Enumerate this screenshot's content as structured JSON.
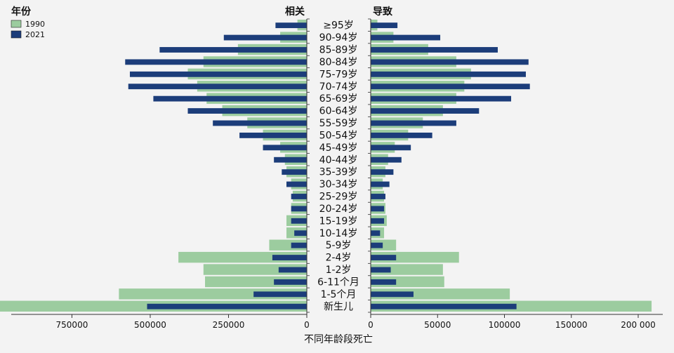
{
  "chart_data": {
    "type": "bar",
    "legend": {
      "title": "年份",
      "position": "top-left",
      "entries": [
        "1990",
        "2021"
      ]
    },
    "left_title": "相关",
    "right_title": "导致",
    "xlabel": "不同年龄段死亡",
    "colors": {
      "1990": "#9ccc9f",
      "2021": "#1c3d7a"
    },
    "categories": [
      "≥95岁",
      "90-94岁",
      "85-89岁",
      "80-84岁",
      "75-79岁",
      "70-74岁",
      "65-69岁",
      "60-64岁",
      "55-59岁",
      "50-54岁",
      "45-49岁",
      "40-44岁",
      "35-39岁",
      "30-34岁",
      "25-29岁",
      "20-24岁",
      "15-19岁",
      "10-14岁",
      "5-9岁",
      "2-4岁",
      "1-2岁",
      "6-11个月",
      "1-5个月",
      "新生儿"
    ],
    "left": {
      "xlim": [
        0,
        890000
      ],
      "ticks": [
        0,
        250000,
        500000,
        750000
      ],
      "tick_labels": [
        "0",
        "250000",
        "500000",
        "750000"
      ],
      "series": [
        {
          "name": "1990",
          "values": [
            30000,
            85000,
            220000,
            330000,
            380000,
            350000,
            320000,
            270000,
            190000,
            140000,
            85000,
            70000,
            65000,
            50000,
            45000,
            50000,
            65000,
            65000,
            120000,
            410000,
            330000,
            325000,
            600000,
            1050000
          ]
        },
        {
          "name": "2021",
          "values": [
            100000,
            265000,
            470000,
            580000,
            565000,
            570000,
            490000,
            380000,
            300000,
            215000,
            140000,
            105000,
            80000,
            65000,
            50000,
            50000,
            50000,
            40000,
            50000,
            110000,
            90000,
            105000,
            170000,
            510000
          ]
        }
      ]
    },
    "right": {
      "xlim": [
        0,
        225000
      ],
      "ticks": [
        0,
        50000,
        100000,
        150000,
        200000
      ],
      "tick_labels": [
        "0",
        "50000",
        "100000",
        "150000",
        "200 000"
      ],
      "series": [
        {
          "name": "1990",
          "values": [
            5000,
            17000,
            43000,
            64000,
            75000,
            70000,
            64000,
            54000,
            39000,
            28000,
            18000,
            13000,
            11000,
            9000,
            10000,
            11000,
            12000,
            10000,
            19000,
            66000,
            54000,
            55000,
            104000,
            210000
          ]
        },
        {
          "name": "2021",
          "values": [
            20000,
            52000,
            95000,
            118000,
            116000,
            119000,
            105000,
            81000,
            64000,
            46000,
            30000,
            23000,
            17000,
            14000,
            11000,
            10000,
            10000,
            7000,
            9000,
            19000,
            15000,
            19000,
            32000,
            109000
          ]
        }
      ]
    }
  }
}
